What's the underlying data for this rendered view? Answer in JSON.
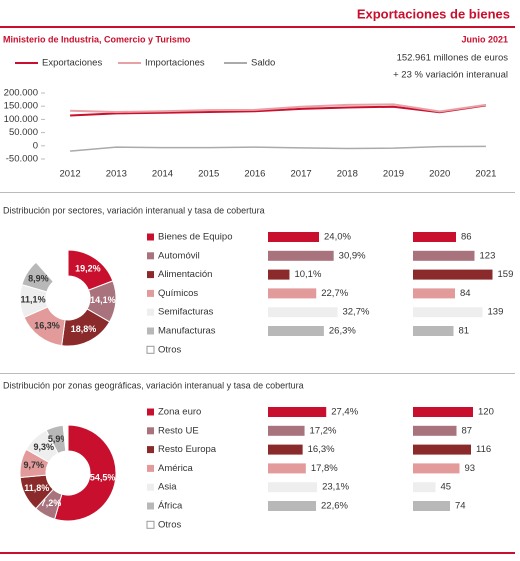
{
  "header": {
    "title": "Exportaciones de bienes",
    "source": "Ministerio de Industria, Comercio y Turismo",
    "date": "Junio 2021",
    "total": "152.961 millones de euros",
    "variation": "+ 23 % variación interanual"
  },
  "chart_data": [
    {
      "type": "line",
      "categories": [
        "2012",
        "2013",
        "2014",
        "2015",
        "2016",
        "2017",
        "2018",
        "2019",
        "2020",
        "2021"
      ],
      "series": [
        {
          "name": "Exportaciones",
          "color": "#c8102e",
          "values": [
            115000,
            123000,
            125000,
            128000,
            131000,
            140000,
            145000,
            148000,
            127000,
            153000
          ]
        },
        {
          "name": "Importaciones",
          "color": "#e8a0a5",
          "values": [
            133000,
            128000,
            131000,
            135000,
            136000,
            148000,
            155000,
            157000,
            130000,
            155000
          ]
        },
        {
          "name": "Saldo",
          "color": "#aaaaaa",
          "values": [
            -20000,
            -5000,
            -7000,
            -7000,
            -5000,
            -8000,
            -10000,
            -9000,
            -3000,
            -2000
          ]
        }
      ],
      "ylim": [
        -50000,
        200000
      ],
      "yticks": [
        {
          "value": 200000,
          "label": "200.000"
        },
        {
          "value": 150000,
          "label": "150.000"
        },
        {
          "value": 100000,
          "label": "100.000"
        },
        {
          "value": 50000,
          "label": "50.000"
        },
        0,
        {
          "value": -50000,
          "label": "-50.000"
        }
      ]
    },
    {
      "type": "pie",
      "title": "Distribución por sectores,  variación interanual y tasa de cobertura",
      "categories": [
        "Bienes de Equipo",
        "Automóvil",
        "Alimentación",
        "Químicos",
        "Semifacturas",
        "Manufacturas",
        "Otros"
      ],
      "values": [
        19.2,
        14.1,
        18.8,
        16.3,
        11.1,
        8.9,
        11.6
      ],
      "value_labels": [
        "19,2%",
        "14,1%",
        "18,8%",
        "16,3%",
        "11,1%",
        "8,9%",
        null
      ],
      "colors": [
        "#c8102e",
        "#a8737d",
        "#8b2a2a",
        "#e39a9a",
        "#eeeeee",
        "#b8b8b8",
        "#ffffff"
      ]
    },
    {
      "type": "bar",
      "values": [
        24.0,
        30.9,
        10.1,
        22.7,
        32.7,
        26.3
      ],
      "value_labels": [
        "24,0%",
        "30,9%",
        "10,1%",
        "22,7%",
        "32,7%",
        "26,3%"
      ],
      "xlim": [
        0,
        40
      ]
    },
    {
      "type": "bar",
      "values": [
        86,
        123,
        159,
        84,
        139,
        81
      ],
      "xlim": [
        0,
        170
      ]
    },
    {
      "type": "pie",
      "title": "Distribución por zonas geográficas, variación interanual y tasa de cobertura",
      "categories": [
        "Zona euro",
        "Resto UE",
        "Resto Europa",
        "América",
        "Asia",
        "África",
        "Otros"
      ],
      "values": [
        54.5,
        7.2,
        11.8,
        9.7,
        9.3,
        5.9,
        1.6
      ],
      "value_labels": [
        "54,5%",
        "7,2%",
        "11,8%",
        "9,7%",
        "9,3%",
        "5,9%",
        null
      ],
      "colors": [
        "#c8102e",
        "#a8737d",
        "#8b2a2a",
        "#e39a9a",
        "#eeeeee",
        "#b8b8b8",
        "#ffffff"
      ]
    },
    {
      "type": "bar",
      "values": [
        27.4,
        17.2,
        16.3,
        17.8,
        23.1,
        22.6
      ],
      "value_labels": [
        "27,4%",
        "17,2%",
        "16,3%",
        "17,8%",
        "23,1%",
        "22,6%"
      ],
      "xlim": [
        0,
        40
      ]
    },
    {
      "type": "bar",
      "values": [
        120,
        87,
        116,
        93,
        45,
        74
      ],
      "xlim": [
        0,
        170
      ]
    }
  ]
}
